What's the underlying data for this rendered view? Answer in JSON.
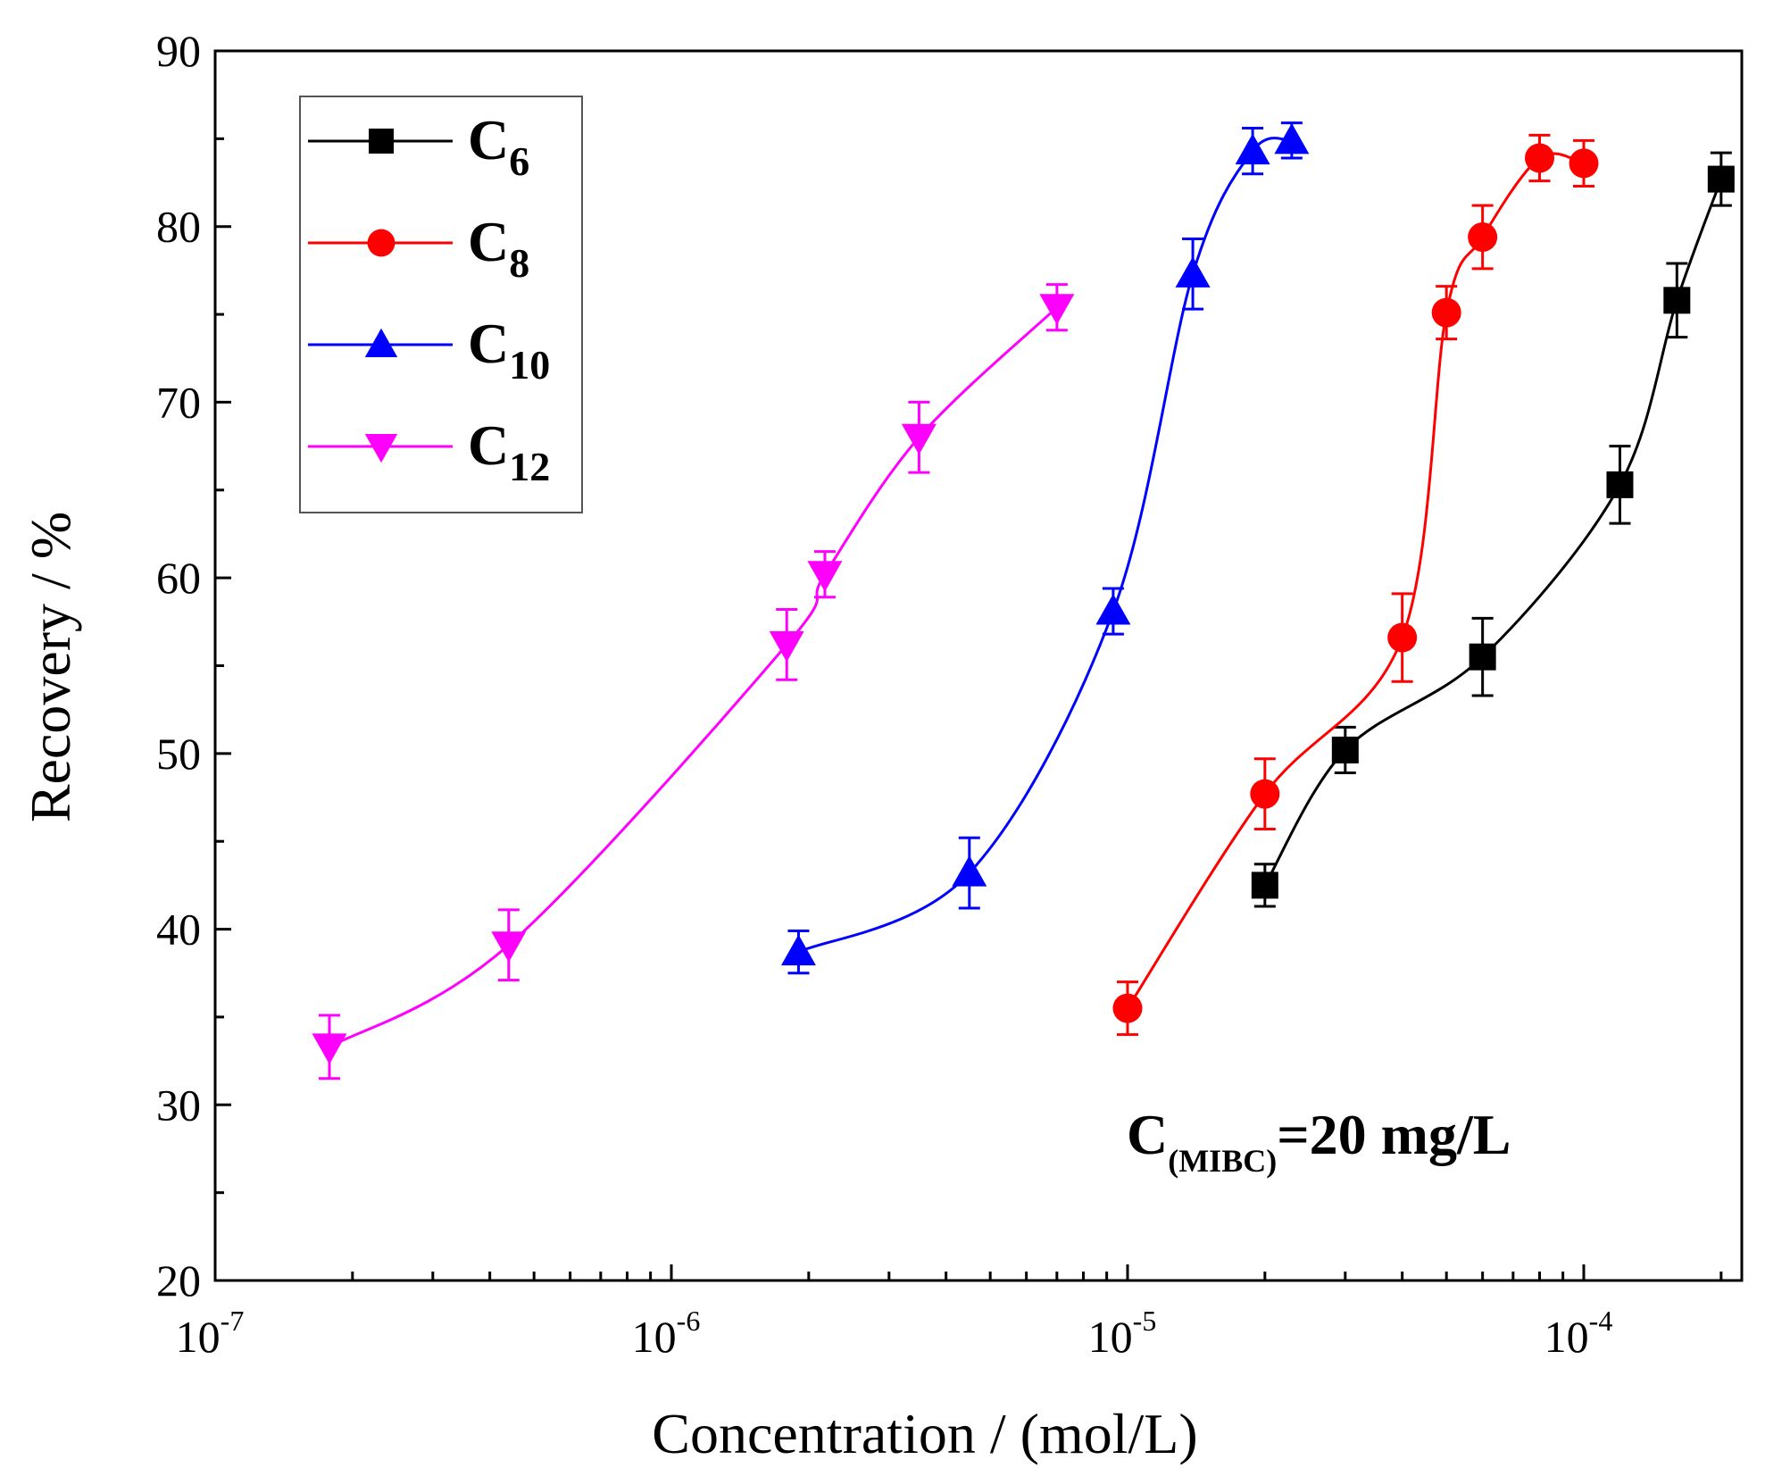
{
  "chart_data": {
    "type": "line",
    "title": "",
    "xlabel": "Concentration / (mol/L)",
    "ylabel": "Recovery / %",
    "xscale": "log",
    "xlim": [
      1e-07,
      0.000222
    ],
    "ylim": [
      20,
      90
    ],
    "x_ticks": [
      {
        "value": 1e-07,
        "base": "10",
        "exp": "-7"
      },
      {
        "value": 1e-06,
        "base": "10",
        "exp": "-6"
      },
      {
        "value": 1e-05,
        "base": "10",
        "exp": "-5"
      },
      {
        "value": 0.0001,
        "base": "10",
        "exp": "-4"
      }
    ],
    "y_ticks": [
      {
        "value": 20,
        "label": "20"
      },
      {
        "value": 30,
        "label": "30"
      },
      {
        "value": 40,
        "label": "40"
      },
      {
        "value": 50,
        "label": "50"
      },
      {
        "value": 60,
        "label": "60"
      },
      {
        "value": 70,
        "label": "70"
      },
      {
        "value": 80,
        "label": "80"
      },
      {
        "value": 90,
        "label": "90"
      }
    ],
    "grid": false,
    "legend_position": "top-left",
    "annotation": {
      "base": "C",
      "sub": "(MIBC)",
      "rest": "=20 mg/L"
    },
    "series": [
      {
        "name_base": "C",
        "name_sub": "6",
        "color": "#000000",
        "marker": "square",
        "x": [
          2e-05,
          3e-05,
          6e-05,
          0.00012,
          0.00016,
          0.0002
        ],
        "y": [
          42.5,
          50.2,
          55.5,
          65.3,
          75.8,
          82.7
        ],
        "err": [
          1.2,
          1.3,
          2.2,
          2.2,
          2.1,
          1.5
        ]
      },
      {
        "name_base": "C",
        "name_sub": "8",
        "color": "#ff0000",
        "marker": "circle",
        "x": [
          1e-05,
          2e-05,
          4e-05,
          5e-05,
          6e-05,
          8e-05,
          0.0001
        ],
        "y": [
          35.5,
          47.7,
          56.6,
          75.1,
          79.4,
          83.9,
          83.6
        ],
        "err": [
          1.5,
          2.0,
          2.5,
          1.5,
          1.8,
          1.3,
          1.3
        ]
      },
      {
        "name_base": "C",
        "name_sub": "10",
        "color": "#0000ff",
        "marker": "triangle-up",
        "x": [
          1.9e-06,
          4.5e-06,
          9.3e-06,
          1.39e-05,
          1.88e-05,
          2.29e-05
        ],
        "y": [
          38.7,
          43.2,
          58.1,
          77.3,
          84.3,
          84.9
        ],
        "err": [
          1.2,
          2.0,
          1.3,
          2.0,
          1.3,
          1.0
        ]
      },
      {
        "name_base": "C",
        "name_sub": "12",
        "color": "#ff00ff",
        "marker": "triangle-down",
        "x": [
          1.78e-07,
          4.4e-07,
          1.79e-06,
          2.17e-06,
          3.49e-06,
          7e-06
        ],
        "y": [
          33.3,
          39.1,
          56.2,
          60.2,
          68.0,
          75.4
        ],
        "err": [
          1.8,
          2.0,
          2.0,
          1.3,
          2.0,
          1.3
        ]
      }
    ]
  }
}
